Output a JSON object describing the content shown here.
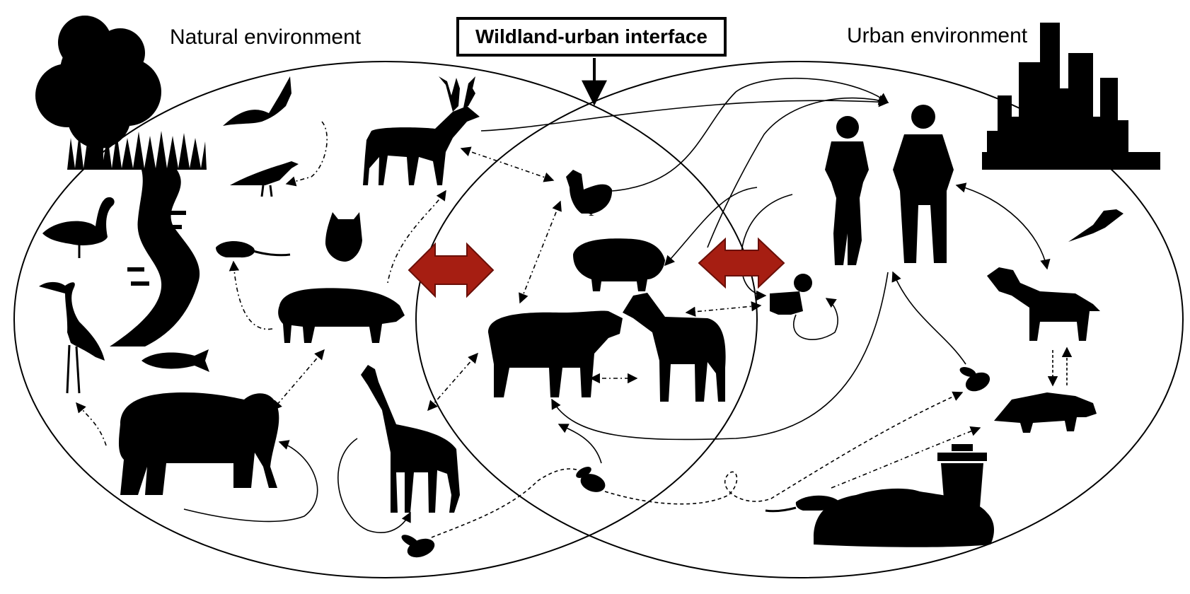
{
  "labels": {
    "natural": "Natural environment",
    "interface": "Wildland-urban interface",
    "urban": "Urban environment"
  },
  "colors": {
    "silhouette": "#000000",
    "arrow_fill": "#a61e12",
    "arrow_stroke": "#6a0f08",
    "background": "#ffffff"
  },
  "icons": {
    "natural": [
      "tree-icon",
      "grass-icon",
      "river-icon",
      "bat-icon",
      "deer-icon",
      "crow-icon",
      "goose-icon",
      "heron-icon",
      "owl-icon",
      "rat-icon",
      "wild-boar-icon",
      "fish-icon",
      "elephant-icon",
      "giraffe-icon",
      "fly-icon"
    ],
    "interface": [
      "rooster-icon",
      "pig-icon",
      "cow-icon",
      "horse-icon",
      "fly-icon"
    ],
    "urban": [
      "city-skyline-icon",
      "woman-icon",
      "man-icon",
      "baby-icon",
      "magpie-icon",
      "dog-icon",
      "raccoon-icon",
      "fly-icon",
      "rat-icon",
      "trash-can-icon",
      "garbage-pile-icon"
    ]
  }
}
